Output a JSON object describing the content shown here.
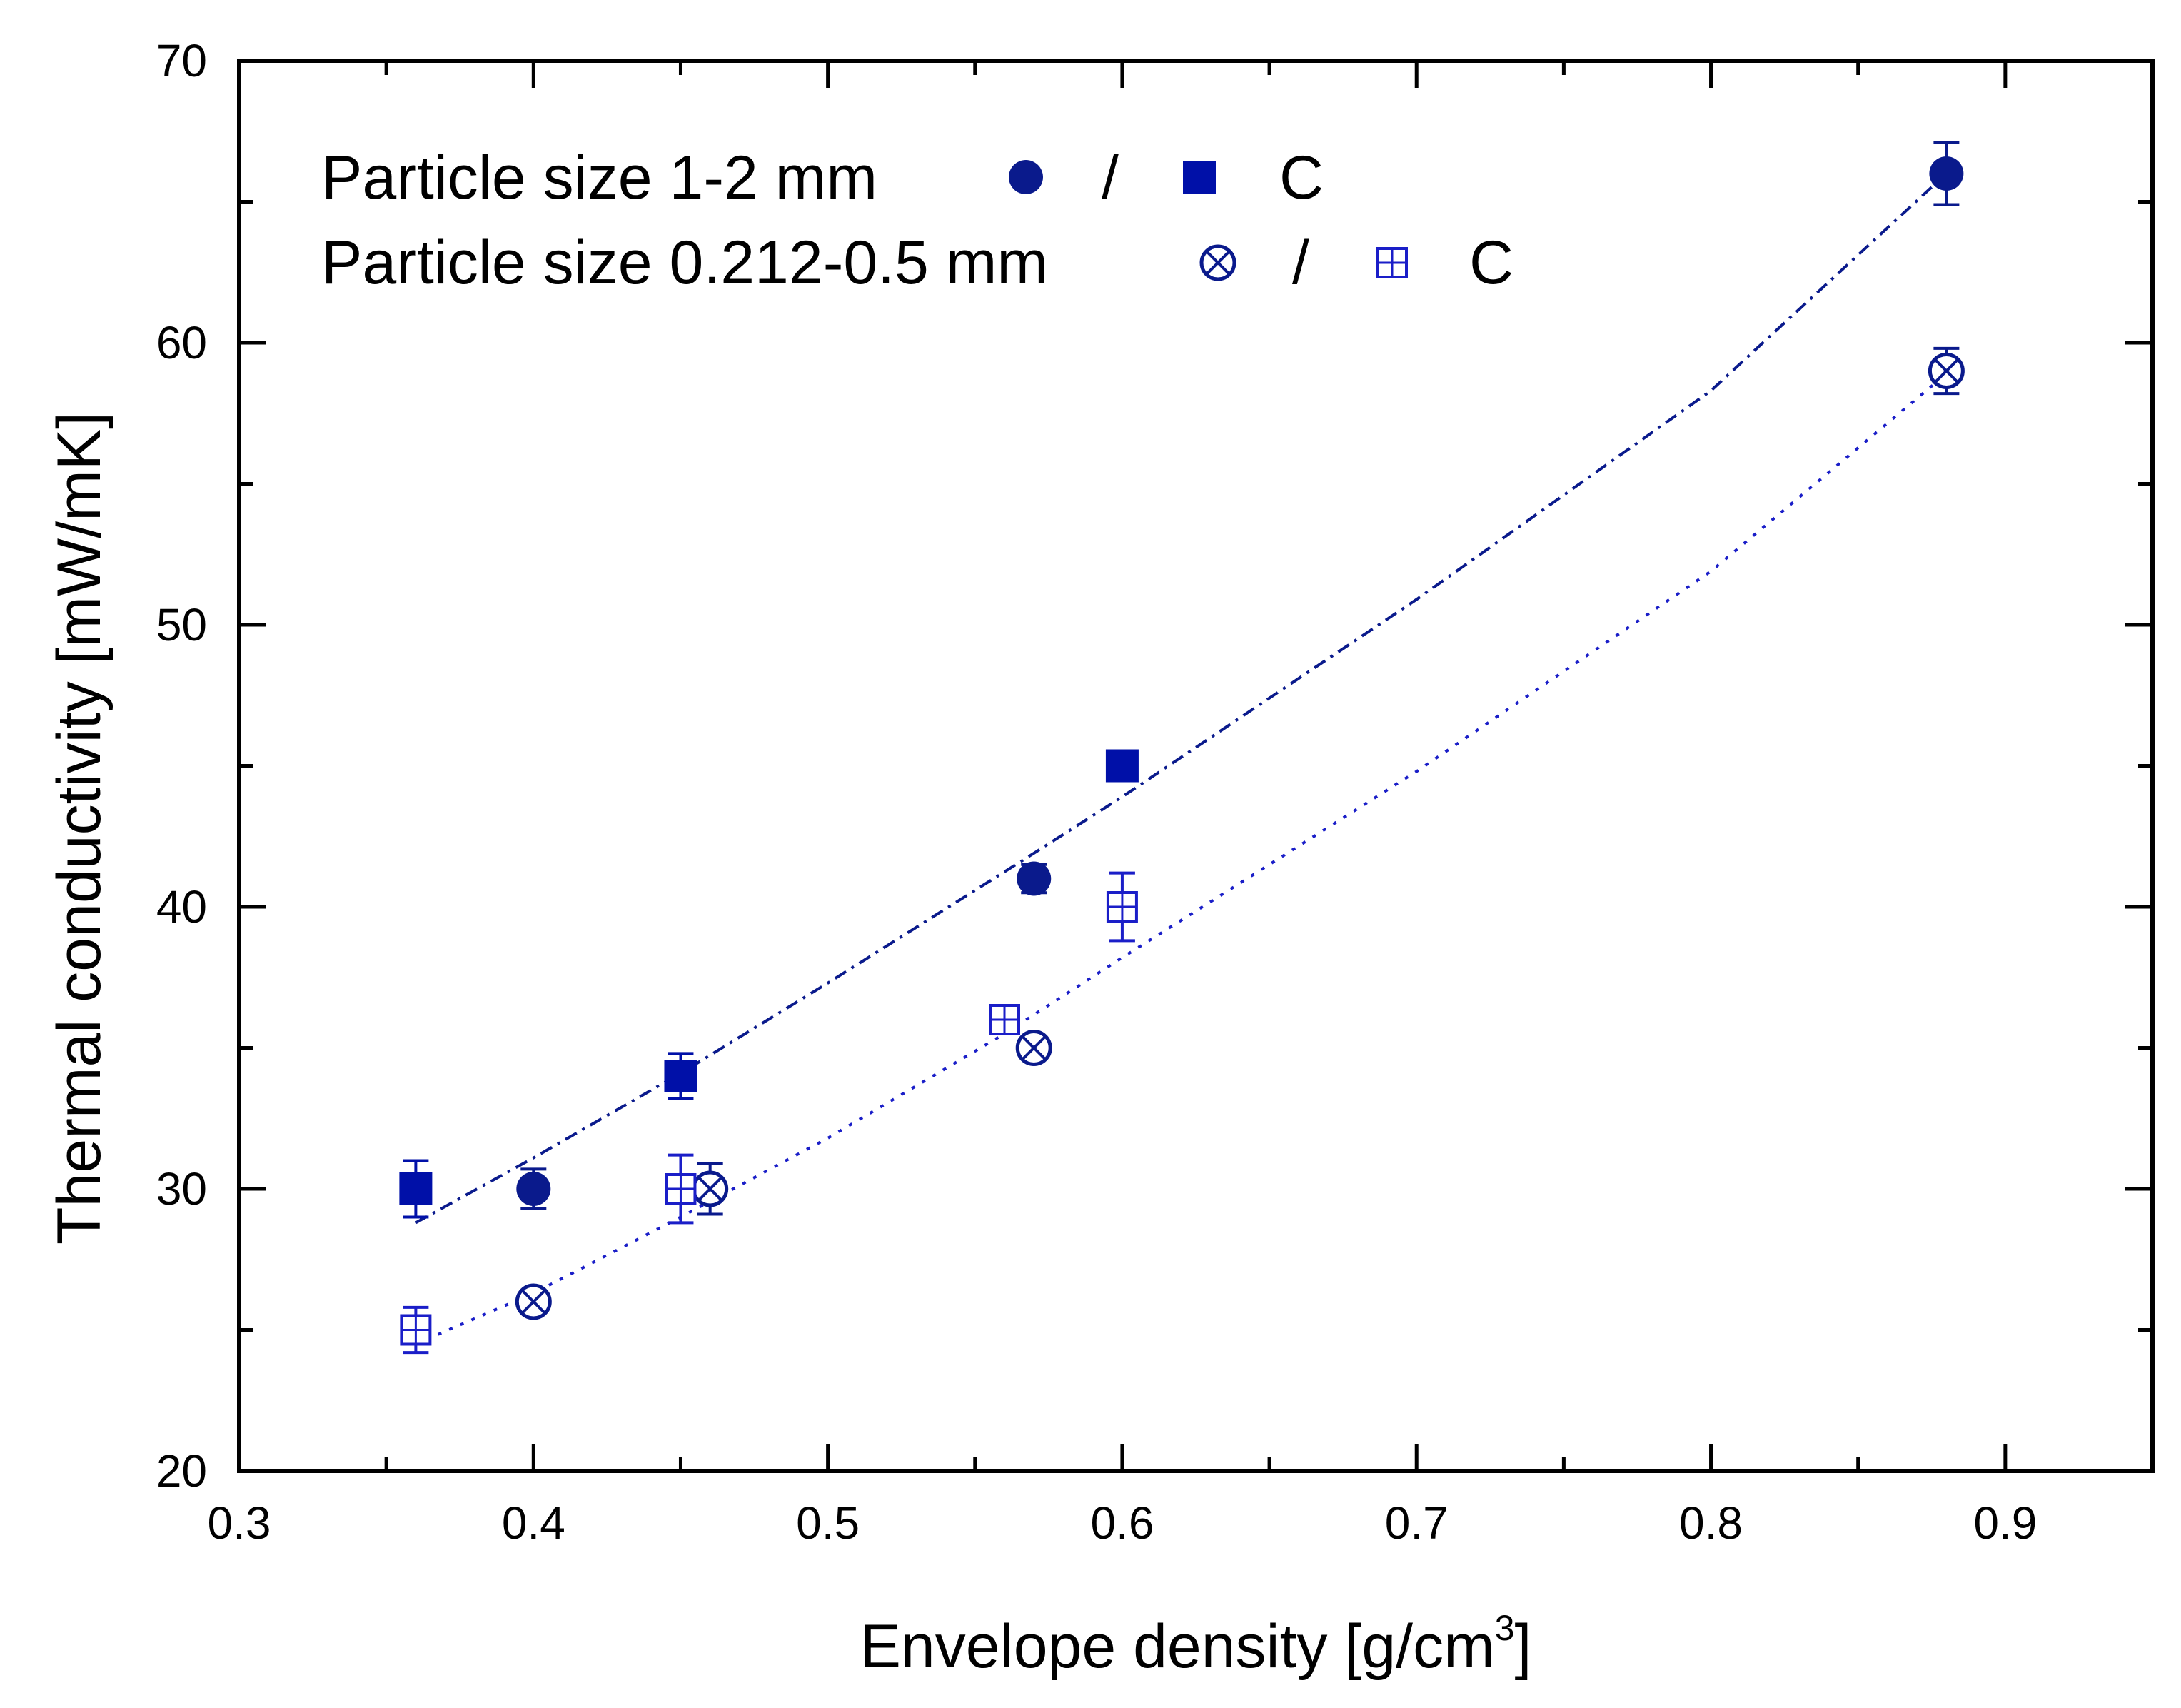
{
  "chart_data": {
    "type": "scatter",
    "title": "",
    "xlabel": "Envelope density [g/cm",
    "xlabel_superscript": "3",
    "xlabel_suffix": "]",
    "ylabel": "Thermal conductivity [mW/mK]",
    "xlim": [
      0.3,
      0.95
    ],
    "ylim": [
      20,
      70
    ],
    "xticks": [
      "0.3",
      "0.4",
      "0.5",
      "0.6",
      "0.7",
      "0.8",
      "0.9"
    ],
    "yticks": [
      "20",
      "30",
      "40",
      "50",
      "60",
      "70"
    ],
    "grid": false,
    "legend": [
      {
        "label": "Particle size 1-2 mm",
        "sep": "/",
        "suffix": "C",
        "marker_a": "filled-circle",
        "marker_b": "filled-square"
      },
      {
        "label": "Particle size 0.212-0.5 mm",
        "sep": "/",
        "suffix": "C",
        "marker_a": "circle-x",
        "marker_b": "square-plus"
      }
    ],
    "series": [
      {
        "name": "Particle size 1-2 mm",
        "marker": "filled-circle",
        "color": "#0a1a8c",
        "points": [
          {
            "x": 0.4,
            "y": 30,
            "err": 0.7
          },
          {
            "x": 0.57,
            "y": 41,
            "err": 0.5
          },
          {
            "x": 0.88,
            "y": 66,
            "err": 1.1
          }
        ]
      },
      {
        "name": "Particle size 1-2 mm C",
        "marker": "filled-square",
        "color": "#0010a8",
        "points": [
          {
            "x": 0.36,
            "y": 30,
            "err": 1.0
          },
          {
            "x": 0.45,
            "y": 34,
            "err": 0.8
          },
          {
            "x": 0.6,
            "y": 45,
            "err": 0
          }
        ]
      },
      {
        "name": "Particle size 0.212-0.5 mm",
        "marker": "circle-x",
        "color": "#0a1a8c",
        "points": [
          {
            "x": 0.4,
            "y": 26,
            "err": 0.4
          },
          {
            "x": 0.46,
            "y": 30,
            "err": 0.9
          },
          {
            "x": 0.57,
            "y": 35,
            "err": 0.4
          },
          {
            "x": 0.88,
            "y": 59,
            "err": 0.8
          }
        ]
      },
      {
        "name": "Particle size 0.212-0.5 mm C",
        "marker": "square-plus",
        "color": "#1a1ec8",
        "points": [
          {
            "x": 0.36,
            "y": 25,
            "err": 0.8
          },
          {
            "x": 0.45,
            "y": 30,
            "err": 1.2
          },
          {
            "x": 0.56,
            "y": 36,
            "err": 0.3
          },
          {
            "x": 0.6,
            "y": 40,
            "err": 1.2
          }
        ]
      }
    ],
    "fits": [
      {
        "name": "fit-1-2mm",
        "style": "dash-dot",
        "color": "#0a1a8c",
        "x": [
          0.36,
          0.4,
          0.45,
          0.5,
          0.57,
          0.6,
          0.7,
          0.8,
          0.88
        ],
        "y": [
          28.8,
          31.1,
          34.1,
          37.3,
          41.9,
          43.9,
          50.9,
          58.3,
          66.0
        ]
      },
      {
        "name": "fit-0.212-0.5mm",
        "style": "dotted",
        "color": "#1a1ec8",
        "x": [
          0.36,
          0.4,
          0.45,
          0.5,
          0.56,
          0.6,
          0.7,
          0.8,
          0.88
        ],
        "y": [
          24.5,
          26.3,
          29.0,
          31.8,
          35.5,
          38.2,
          44.8,
          51.9,
          58.9
        ]
      }
    ]
  }
}
